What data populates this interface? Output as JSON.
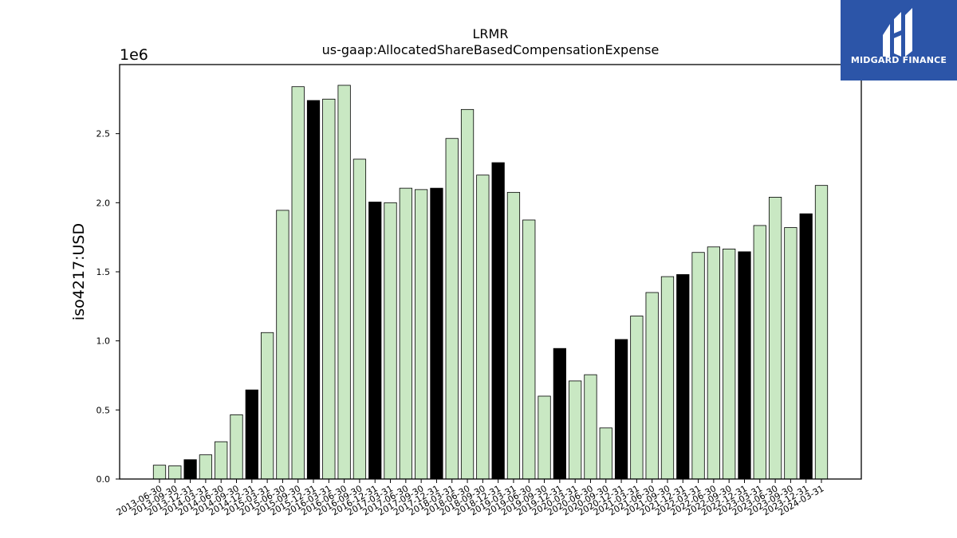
{
  "brand": {
    "name": "MIDGARD FINANCE",
    "logo_icon": "midgard-monogram-icon",
    "background_color": "#2c55a8",
    "foreground_color": "#ffffff"
  },
  "chart_data": {
    "type": "bar",
    "title": "LRMR",
    "subtitle": "us-gaap:AllocatedShareBasedCompensationExpense",
    "xlabel": "",
    "ylabel": "iso4217:USD",
    "y_scale_label": "1e6",
    "y_multiplier": 1000000,
    "ylim": [
      0,
      3000000
    ],
    "y_ticks": [
      0,
      500000,
      1000000,
      1500000,
      2000000,
      2500000
    ],
    "y_tick_labels": [
      "0.0",
      "0.5",
      "1.0",
      "1.5",
      "2.0",
      "2.5"
    ],
    "grid": false,
    "legend": "none",
    "colors": {
      "quarter_bar": "#c9e8c3",
      "year_end_bar": "#000000",
      "bar_edge": "#000000"
    },
    "categories": [
      "2013-06-30",
      "2013-09-30",
      "2013-12-31",
      "2014-03-31",
      "2014-06-30",
      "2014-09-30",
      "2014-12-31",
      "2015-03-31",
      "2015-06-30",
      "2015-09-30",
      "2015-12-31",
      "2016-03-31",
      "2016-06-30",
      "2016-09-30",
      "2016-12-31",
      "2017-03-31",
      "2017-06-30",
      "2017-09-30",
      "2017-12-31",
      "2018-03-31",
      "2018-06-30",
      "2018-09-30",
      "2018-12-31",
      "2019-03-31",
      "2019-06-30",
      "2019-09-30",
      "2019-12-31",
      "2020-03-31",
      "2020-06-30",
      "2020-09-30",
      "2020-12-31",
      "2021-03-31",
      "2021-06-30",
      "2021-09-30",
      "2021-12-31",
      "2022-03-31",
      "2022-06-30",
      "2022-09-30",
      "2022-12-31",
      "2023-03-31",
      "2023-06-30",
      "2023-09-30",
      "2023-12-31",
      "2024-03-31"
    ],
    "values": [
      100000,
      95000,
      140000,
      175000,
      270000,
      465000,
      645000,
      1060000,
      1945000,
      2840000,
      2740000,
      2750000,
      2850000,
      2315000,
      2005000,
      2000000,
      2105000,
      2095000,
      2105000,
      2465000,
      2675000,
      2200000,
      2290000,
      2075000,
      1875000,
      600000,
      945000,
      710000,
      755000,
      370000,
      1010000,
      1180000,
      1350000,
      1465000,
      1480000,
      1640000,
      1680000,
      1665000,
      1645000,
      1835000,
      2040000,
      1820000,
      1920000,
      2125000
    ],
    "highlight": [
      false,
      false,
      true,
      false,
      false,
      false,
      true,
      false,
      false,
      false,
      true,
      false,
      false,
      false,
      true,
      false,
      false,
      false,
      true,
      false,
      false,
      false,
      true,
      false,
      false,
      false,
      true,
      false,
      false,
      false,
      true,
      false,
      false,
      false,
      true,
      false,
      false,
      false,
      true,
      false,
      false,
      false,
      true,
      false
    ]
  }
}
